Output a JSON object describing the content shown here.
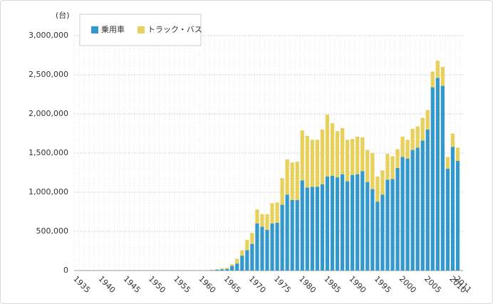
{
  "chart_data": {
    "type": "stacked_bar",
    "y_label": "(台)",
    "categories": [
      "1935",
      null,
      null,
      null,
      null,
      "1940",
      null,
      null,
      null,
      null,
      "1945",
      null,
      null,
      null,
      null,
      "1950",
      null,
      null,
      null,
      null,
      "1955",
      null,
      null,
      null,
      null,
      "1960",
      null,
      null,
      null,
      null,
      "1965",
      null,
      null,
      null,
      null,
      "1970",
      null,
      null,
      null,
      null,
      "1975",
      null,
      null,
      null,
      null,
      "1980",
      null,
      null,
      null,
      null,
      "1985",
      null,
      null,
      null,
      null,
      "1990",
      null,
      null,
      null,
      null,
      "1995",
      null,
      null,
      null,
      null,
      "2000",
      null,
      null,
      null,
      null,
      "2005",
      null,
      null,
      null,
      null,
      "2010",
      "2011"
    ],
    "series": [
      {
        "name": "乗用車",
        "color": "#3399cc",
        "values": [
          0,
          0,
          0,
          0,
          0,
          0,
          0,
          0,
          0,
          0,
          0,
          0,
          0,
          0,
          0,
          0,
          0,
          0,
          0,
          0,
          0,
          0,
          0,
          0,
          0,
          0,
          0,
          5000,
          10000,
          15000,
          20000,
          60000,
          90000,
          190000,
          260000,
          340000,
          600000,
          560000,
          520000,
          600000,
          610000,
          840000,
          970000,
          900000,
          900000,
          1150000,
          1060000,
          1070000,
          1070000,
          1100000,
          1200000,
          1210000,
          1190000,
          1230000,
          1140000,
          1220000,
          1230000,
          1270000,
          1130000,
          1040000,
          880000,
          970000,
          1160000,
          1170000,
          1310000,
          1450000,
          1430000,
          1540000,
          1570000,
          1660000,
          1800000,
          2340000,
          2460000,
          2360000,
          1300000,
          1580000,
          1400000
        ]
      },
      {
        "name": "トラック・バス",
        "color": "#e8d15a",
        "values": [
          0,
          0,
          0,
          0,
          0,
          0,
          0,
          0,
          0,
          0,
          0,
          0,
          0,
          0,
          0,
          0,
          0,
          0,
          0,
          0,
          0,
          0,
          0,
          0,
          0,
          0,
          0,
          5000,
          8000,
          12000,
          16000,
          20000,
          60000,
          70000,
          130000,
          140000,
          180000,
          160000,
          200000,
          260000,
          260000,
          340000,
          450000,
          480000,
          490000,
          640000,
          660000,
          600000,
          600000,
          700000,
          790000,
          670000,
          590000,
          590000,
          530000,
          460000,
          480000,
          430000,
          410000,
          460000,
          320000,
          310000,
          330000,
          290000,
          240000,
          260000,
          240000,
          270000,
          270000,
          290000,
          250000,
          200000,
          220000,
          240000,
          150000,
          170000,
          170000
        ]
      }
    ],
    "ylim": [
      0,
      3000000
    ],
    "yticks": [
      0,
      {
        "value": 500000,
        "label": "500,000"
      },
      {
        "value": 1000000,
        "label": "1,000,000"
      },
      {
        "value": 1500000,
        "label": "1,500,000"
      },
      {
        "value": 2000000,
        "label": "2,000,000"
      },
      {
        "value": 2500000,
        "label": "2,500,000"
      },
      {
        "value": 3000000,
        "label": "3,000,000"
      }
    ],
    "grid": true,
    "legend": "top-left"
  }
}
